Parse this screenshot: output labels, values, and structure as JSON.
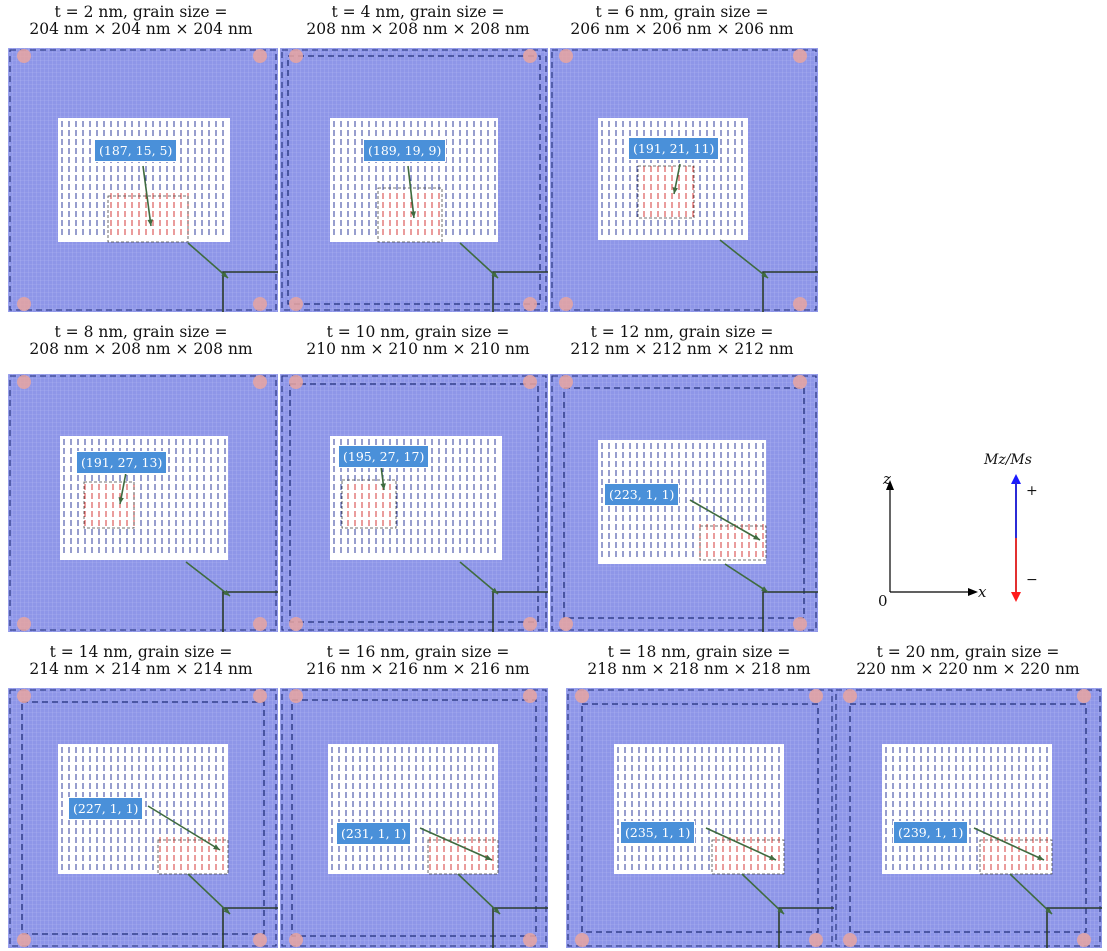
{
  "panels": [
    {
      "caption_line1": "t = 2 nm, grain size =",
      "caption_line2": "204 nm × 204 nm × 204 nm",
      "coord_label": "(187, 15, 5)"
    },
    {
      "caption_line1": "t = 4 nm, grain size =",
      "caption_line2": "208 nm × 208 nm × 208 nm",
      "coord_label": "(189, 19, 9)"
    },
    {
      "caption_line1": "t = 6 nm, grain size =",
      "caption_line2": "206 nm × 206 nm × 206 nm",
      "coord_label": "(191, 21, 11)"
    },
    {
      "caption_line1": "t = 8 nm, grain size =",
      "caption_line2": "208 nm × 208 nm × 208 nm",
      "coord_label": "(191, 27, 13)"
    },
    {
      "caption_line1": "t = 10 nm, grain size =",
      "caption_line2": "210 nm × 210 nm × 210 nm",
      "coord_label": "(195, 27, 17)"
    },
    {
      "caption_line1": "t = 12 nm, grain size =",
      "caption_line2": "212 nm × 212 nm × 212 nm",
      "coord_label": "(223, 1, 1)"
    },
    {
      "caption_line1": "t = 14 nm, grain size =",
      "caption_line2": "214 nm × 214 nm × 214 nm",
      "coord_label": "(227, 1, 1)"
    },
    {
      "caption_line1": "t = 16 nm, grain size =",
      "caption_line2": "216 nm × 216 nm × 216 nm",
      "coord_label": "(231, 1, 1)"
    },
    {
      "caption_line1": "t = 18 nm, grain size =",
      "caption_line2": "218 nm × 218 nm × 218 nm",
      "coord_label": "(235, 1, 1)"
    },
    {
      "caption_line1": "t = 20 nm, grain size =",
      "caption_line2": "220 nm × 220 nm × 220 nm",
      "coord_label": "(239, 1, 1)"
    }
  ],
  "axes": {
    "z_label": "z",
    "x_label": "x",
    "origin_label": "0"
  },
  "legend": {
    "title": "Mz/Ms",
    "plus": "+",
    "minus": "−",
    "positive_color": "#1a1aff",
    "negative_color": "#ff1a1a"
  },
  "colors": {
    "background": "#8f96e6",
    "arrow_tag": "#4a90d9",
    "arrow_line": "#3f6b3f"
  }
}
